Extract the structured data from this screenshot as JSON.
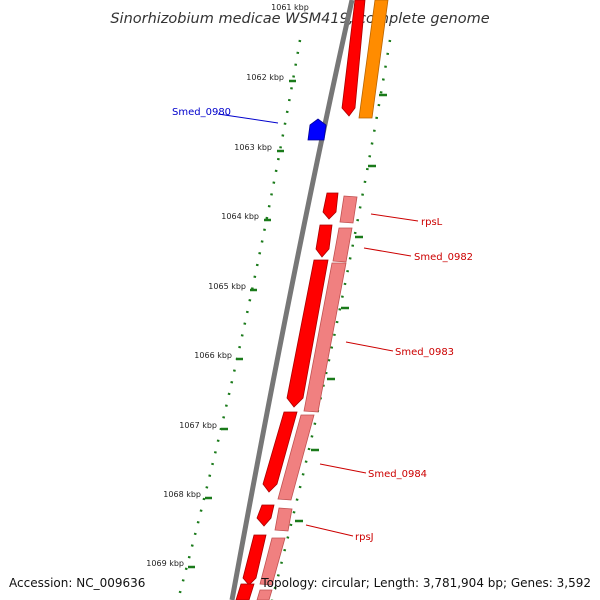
{
  "title": "Sinorhizobium medicae WSM419, complete genome",
  "accession": "Accession: NC_009636",
  "topology": "Topology: circular; Length: 3,781,904 bp; Genes: 3,592",
  "ticks": [
    {
      "label": "1061 kbp"
    },
    {
      "label": "1062 kbp"
    },
    {
      "label": "1063 kbp"
    },
    {
      "label": "1064 kbp"
    },
    {
      "label": "1065 kbp"
    },
    {
      "label": "1066 kbp"
    },
    {
      "label": "1067 kbp"
    },
    {
      "label": "1068 kbp"
    },
    {
      "label": "1069 kbp"
    }
  ],
  "labels": [
    {
      "text": "Smed_0980",
      "color": "#0000cc"
    },
    {
      "text": "rpsL",
      "color": "#cc0000"
    },
    {
      "text": "Smed_0982",
      "color": "#cc0000"
    },
    {
      "text": "Smed_0983",
      "color": "#cc0000"
    },
    {
      "text": "Smed_0984",
      "color": "#cc0000"
    },
    {
      "text": "rpsJ",
      "color": "#cc0000"
    }
  ],
  "colors": {
    "cds": "#ff0000",
    "gene": "#f08080",
    "other": "#ff8c00",
    "reverse_cds": "#0000ff",
    "backbone": "#777777",
    "tick_marks": "#1a7a1a"
  }
}
